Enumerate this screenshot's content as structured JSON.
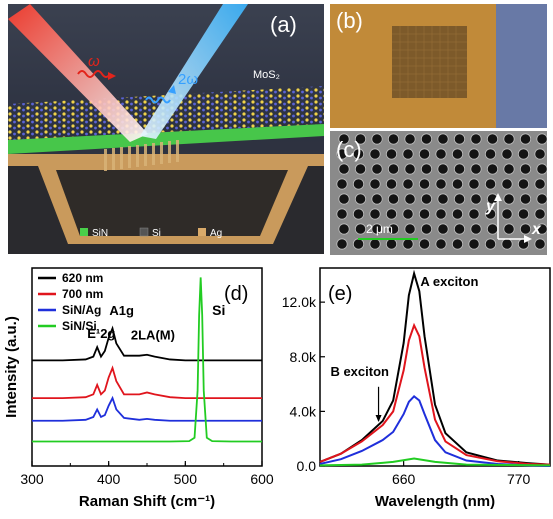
{
  "panels": {
    "a": {
      "label": "(a)",
      "omega": "ω",
      "two_omega": "2ω",
      "mos2": "MoS₂",
      "legend": [
        {
          "label": "SiN",
          "color": "#49d04a"
        },
        {
          "label": "Si",
          "color": "#3c3c3c"
        },
        {
          "label": "Ag",
          "color": "#d9aa6a"
        }
      ]
    },
    "b": {
      "label": "(b)"
    },
    "c": {
      "label": "(c)",
      "scale": "2 μm",
      "y_axis": "y",
      "x_axis": "x"
    },
    "d": {
      "label": "(d)"
    },
    "e": {
      "label": "(e)"
    }
  },
  "chart_data": [
    {
      "type": "line",
      "panel": "(d)",
      "xlabel": "Raman Shift (cm⁻¹)",
      "ylabel": "Intensity (a.u.)",
      "xlim": [
        300,
        600
      ],
      "xticks": [
        300,
        400,
        500,
        600
      ],
      "legend_position": "top-left",
      "annotations": [
        "E¹2g",
        "A1g",
        "2LA(M)",
        "Si"
      ],
      "series": [
        {
          "name": "620 nm",
          "color": "#000000",
          "x": [
            300,
            340,
            370,
            380,
            385,
            390,
            395,
            400,
            405,
            410,
            420,
            440,
            450,
            460,
            480,
            500,
            515,
            520,
            525,
            540,
            570,
            600
          ],
          "y": [
            0.56,
            0.56,
            0.565,
            0.58,
            0.63,
            0.58,
            0.61,
            0.68,
            0.73,
            0.65,
            0.585,
            0.585,
            0.59,
            0.58,
            0.565,
            0.56,
            0.56,
            0.56,
            0.56,
            0.56,
            0.56,
            0.56
          ]
        },
        {
          "name": "700 nm",
          "color": "#e0151d",
          "x": [
            300,
            340,
            370,
            380,
            385,
            390,
            395,
            400,
            405,
            410,
            420,
            440,
            450,
            460,
            480,
            500,
            515,
            520,
            525,
            540,
            570,
            600
          ],
          "y": [
            0.36,
            0.36,
            0.365,
            0.38,
            0.43,
            0.38,
            0.4,
            0.47,
            0.52,
            0.45,
            0.38,
            0.38,
            0.39,
            0.38,
            0.365,
            0.36,
            0.36,
            0.36,
            0.36,
            0.36,
            0.36,
            0.36
          ]
        },
        {
          "name": "SiN/Ag",
          "color": "#1f2fdb",
          "x": [
            300,
            340,
            370,
            380,
            385,
            390,
            395,
            400,
            405,
            410,
            420,
            440,
            450,
            460,
            480,
            500,
            515,
            520,
            525,
            540,
            570,
            600
          ],
          "y": [
            0.24,
            0.24,
            0.245,
            0.26,
            0.3,
            0.26,
            0.27,
            0.32,
            0.36,
            0.3,
            0.255,
            0.245,
            0.25,
            0.245,
            0.24,
            0.24,
            0.24,
            0.24,
            0.24,
            0.24,
            0.24,
            0.24
          ]
        },
        {
          "name": "SiN/Si",
          "color": "#22cc22",
          "x": [
            300,
            400,
            480,
            505,
            512,
            516,
            518,
            520,
            522,
            524,
            528,
            535,
            560,
            600
          ],
          "y": [
            0.13,
            0.13,
            0.13,
            0.132,
            0.15,
            0.4,
            0.8,
            1.0,
            0.8,
            0.4,
            0.15,
            0.132,
            0.13,
            0.13
          ]
        }
      ]
    },
    {
      "type": "line",
      "panel": "(e)",
      "xlabel": "Wavelength (nm)",
      "ylabel": "",
      "xlim": [
        580,
        800
      ],
      "ylim": [
        0,
        14.5
      ],
      "xticks": [
        660,
        770
      ],
      "yticks": [
        0.0,
        4.0,
        8.0,
        12.0
      ],
      "ytick_labels": [
        "0.0",
        "4.0k",
        "8.0k",
        "12.0k"
      ],
      "annotations": [
        "A exciton",
        "B exciton"
      ],
      "series": [
        {
          "name": "",
          "color": "#000000",
          "x": [
            580,
            600,
            620,
            640,
            650,
            660,
            665,
            670,
            675,
            680,
            690,
            700,
            720,
            750,
            780,
            800
          ],
          "y": [
            0.3,
            0.9,
            1.9,
            3.3,
            4.8,
            9.0,
            12.5,
            14.1,
            12.8,
            9.5,
            4.5,
            2.4,
            1.0,
            0.4,
            0.2,
            0.1
          ]
        },
        {
          "name": "",
          "color": "#e0151d",
          "x": [
            580,
            600,
            620,
            640,
            650,
            660,
            665,
            670,
            675,
            680,
            690,
            700,
            720,
            750,
            780,
            800
          ],
          "y": [
            0.3,
            0.9,
            1.8,
            3.0,
            4.0,
            7.0,
            9.2,
            10.3,
            9.5,
            7.2,
            3.4,
            1.8,
            0.8,
            0.35,
            0.15,
            0.1
          ]
        },
        {
          "name": "",
          "color": "#1f2fdb",
          "x": [
            580,
            600,
            620,
            640,
            650,
            660,
            665,
            670,
            675,
            680,
            690,
            700,
            720,
            750,
            780,
            800
          ],
          "y": [
            0.15,
            0.5,
            1.1,
            1.9,
            2.5,
            3.8,
            4.7,
            5.1,
            4.8,
            3.8,
            1.9,
            1.0,
            0.4,
            0.15,
            0.05,
            0.0
          ]
        },
        {
          "name": "",
          "color": "#22cc22",
          "x": [
            580,
            620,
            650,
            670,
            690,
            720,
            800
          ],
          "y": [
            0.05,
            0.1,
            0.3,
            0.55,
            0.3,
            0.1,
            0.05
          ]
        }
      ]
    }
  ]
}
